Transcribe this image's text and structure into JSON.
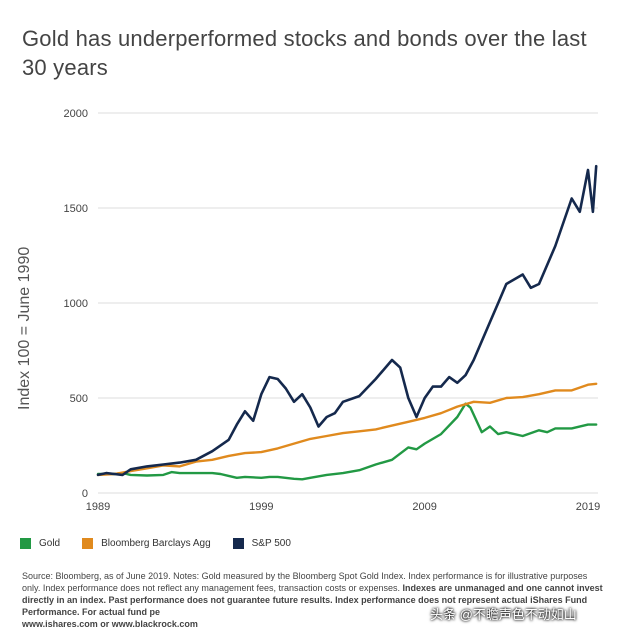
{
  "title": "Gold has underperformed stocks and bonds over the last 30 years",
  "colors": {
    "gold": "#229944",
    "agg": "#e08a1e",
    "sp500": "#15294d",
    "grid": "#dddddd"
  },
  "chart_data": {
    "type": "line",
    "title": "Gold has underperformed stocks and bonds over the last 30 years",
    "xlabel": "",
    "ylabel": "Index 100 = June 1990",
    "xlim": [
      1989,
      2019
    ],
    "ylim": [
      0,
      2000
    ],
    "x_ticks": [
      "1989",
      "1999",
      "2009",
      "2019"
    ],
    "y_ticks": [
      "0",
      "500",
      "1000",
      "1500",
      "2000"
    ],
    "legend_position": "bottom-left",
    "series": [
      {
        "name": "Gold",
        "color": "#229944",
        "x": [
          1989.0,
          1990.0,
          1990.5,
          1991.0,
          1992.0,
          1993.0,
          1993.5,
          1994.0,
          1995.0,
          1996.0,
          1996.5,
          1997.0,
          1997.5,
          1998.0,
          1999.0,
          1999.5,
          2000.0,
          2001.0,
          2001.5,
          2002.0,
          2003.0,
          2004.0,
          2005.0,
          2006.0,
          2007.0,
          2008.0,
          2008.5,
          2009.0,
          2010.0,
          2011.0,
          2011.5,
          2011.8,
          2012.5,
          2013.0,
          2013.5,
          2014.0,
          2015.0,
          2016.0,
          2016.5,
          2017.0,
          2018.0,
          2019.0,
          2019.5
        ],
        "values": [
          100,
          100,
          105,
          95,
          92,
          95,
          110,
          105,
          105,
          105,
          100,
          90,
          80,
          85,
          80,
          85,
          85,
          75,
          72,
          80,
          95,
          105,
          120,
          150,
          175,
          240,
          230,
          260,
          310,
          400,
          470,
          450,
          320,
          350,
          310,
          320,
          300,
          330,
          320,
          340,
          340,
          360,
          360
        ]
      },
      {
        "name": "Bloomberg Barclays Agg",
        "color": "#e08a1e",
        "x": [
          1989.0,
          1990.0,
          1991.0,
          1992.0,
          1993.0,
          1994.0,
          1995.0,
          1996.0,
          1997.0,
          1998.0,
          1999.0,
          2000.0,
          2001.0,
          2002.0,
          2003.0,
          2004.0,
          2005.0,
          2006.0,
          2007.0,
          2008.0,
          2009.0,
          2010.0,
          2011.0,
          2012.0,
          2013.0,
          2014.0,
          2015.0,
          2016.0,
          2017.0,
          2018.0,
          2019.0,
          2019.5
        ],
        "values": [
          95,
          100,
          115,
          130,
          145,
          140,
          165,
          175,
          195,
          210,
          215,
          235,
          260,
          285,
          300,
          315,
          325,
          335,
          355,
          375,
          395,
          420,
          455,
          480,
          475,
          500,
          505,
          520,
          540,
          540,
          570,
          575
        ]
      },
      {
        "name": "S&P 500",
        "color": "#15294d",
        "x": [
          1989.0,
          1989.5,
          1990.0,
          1990.5,
          1991.0,
          1992.0,
          1993.0,
          1994.0,
          1995.0,
          1996.0,
          1997.0,
          1997.5,
          1998.0,
          1998.5,
          1999.0,
          1999.5,
          2000.0,
          2000.5,
          2001.0,
          2001.5,
          2002.0,
          2002.5,
          2003.0,
          2003.5,
          2004.0,
          2005.0,
          2006.0,
          2007.0,
          2007.5,
          2008.0,
          2008.5,
          2009.0,
          2009.5,
          2010.0,
          2010.5,
          2011.0,
          2011.5,
          2012.0,
          2013.0,
          2013.5,
          2014.0,
          2015.0,
          2015.5,
          2016.0,
          2017.0,
          2018.0,
          2018.5,
          2019.0,
          2019.3,
          2019.5
        ],
        "values": [
          95,
          105,
          100,
          95,
          125,
          140,
          150,
          160,
          175,
          220,
          280,
          360,
          430,
          380,
          520,
          610,
          600,
          550,
          480,
          520,
          450,
          350,
          400,
          420,
          480,
          510,
          600,
          700,
          660,
          500,
          400,
          500,
          560,
          560,
          610,
          580,
          620,
          700,
          900,
          1000,
          1100,
          1150,
          1080,
          1100,
          1300,
          1550,
          1480,
          1700,
          1480,
          1720
        ]
      }
    ]
  },
  "legend": {
    "items": [
      {
        "label": "Gold",
        "color": "#229944"
      },
      {
        "label": "Bloomberg Barclays Agg",
        "color": "#e08a1e"
      },
      {
        "label": "S&P 500",
        "color": "#15294d"
      }
    ]
  },
  "footer": {
    "line1": "Source: Bloomberg, as of June 2019. Notes: Gold measured by the Bloomberg Spot Gold Index. Index performance is for illustrative purposes only.  Index performance does not reflect any management fees, transaction costs or expenses. ",
    "bold": "Indexes are unmanaged and one cannot invest directly in an index. Past performance does not guarantee future results. Index performance does not represent actual iShares Fund Performance. For actual fund pe",
    "links": "www.ishares.com or www.blackrock.com"
  },
  "watermark": "头条 @不瞻声色不动如山"
}
